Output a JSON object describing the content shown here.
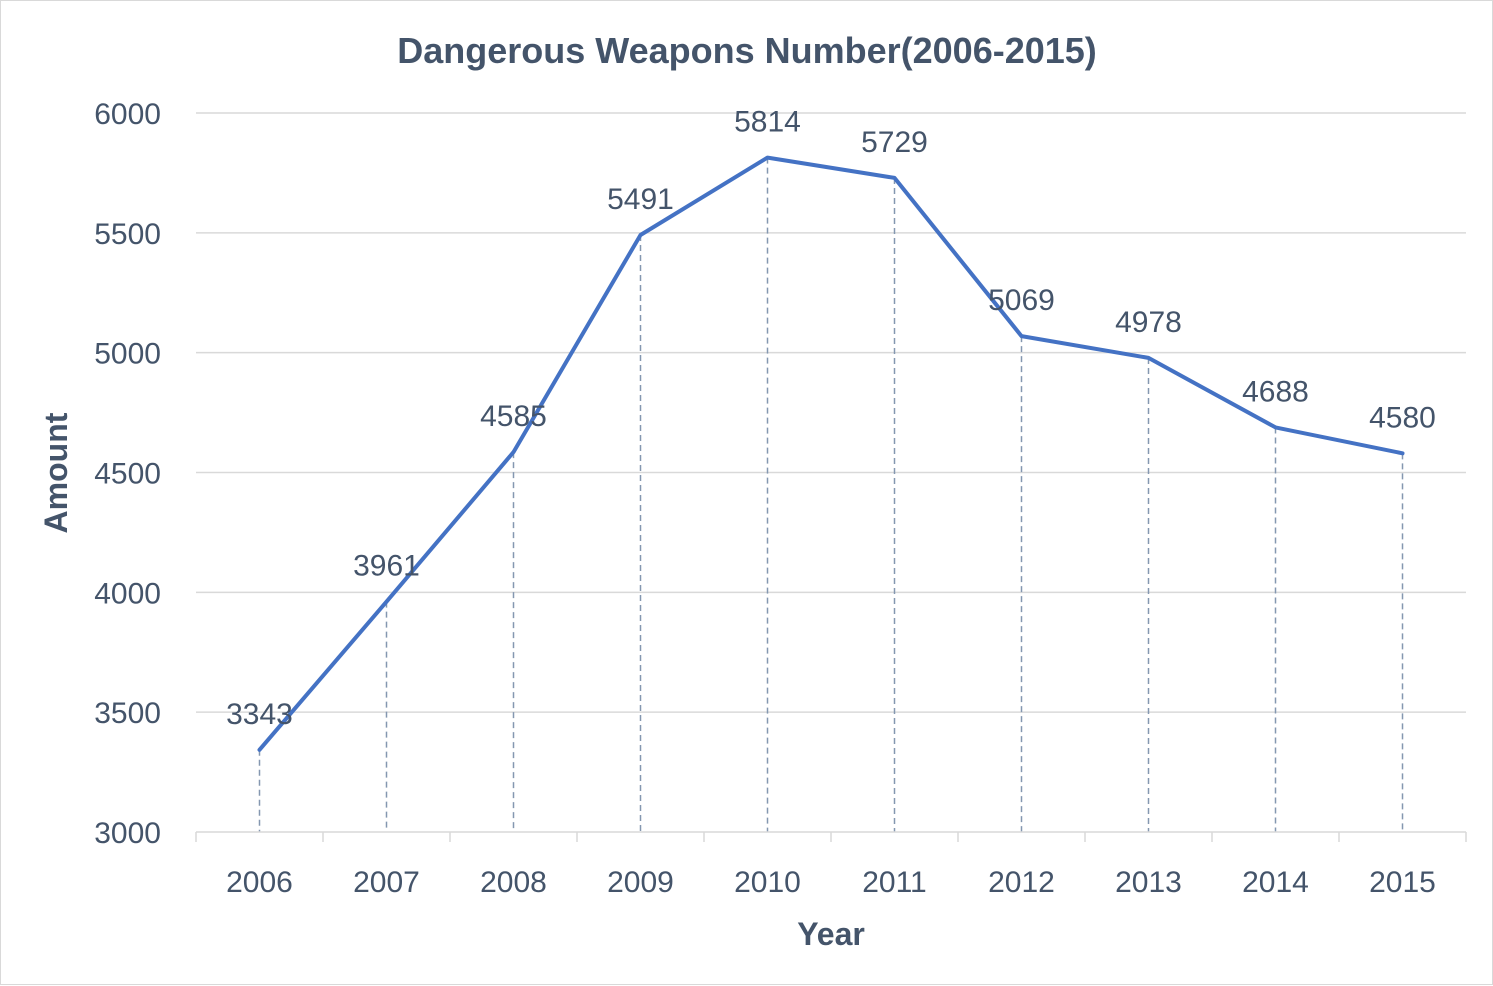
{
  "chart_data": {
    "type": "line",
    "title": "Dangerous Weapons Number(2006-2015)",
    "xlabel": "Year",
    "ylabel": "Amount",
    "categories": [
      "2006",
      "2007",
      "2008",
      "2009",
      "2010",
      "2011",
      "2012",
      "2013",
      "2014",
      "2015"
    ],
    "series": [
      {
        "values": [
          3343,
          3961,
          4585,
          5491,
          5814,
          5729,
          5069,
          4978,
          4688,
          4580
        ]
      }
    ],
    "ylim": [
      3000,
      6000
    ],
    "yticks": [
      3000,
      3500,
      4000,
      4500,
      5000,
      5500,
      6000
    ],
    "grid": true,
    "drop_lines": true,
    "data_labels": true,
    "legend": "none",
    "colors": {
      "line": "#4472c4",
      "text": "#44546a",
      "grid": "#d9d9d9",
      "drop_line": "#8497b0"
    }
  }
}
